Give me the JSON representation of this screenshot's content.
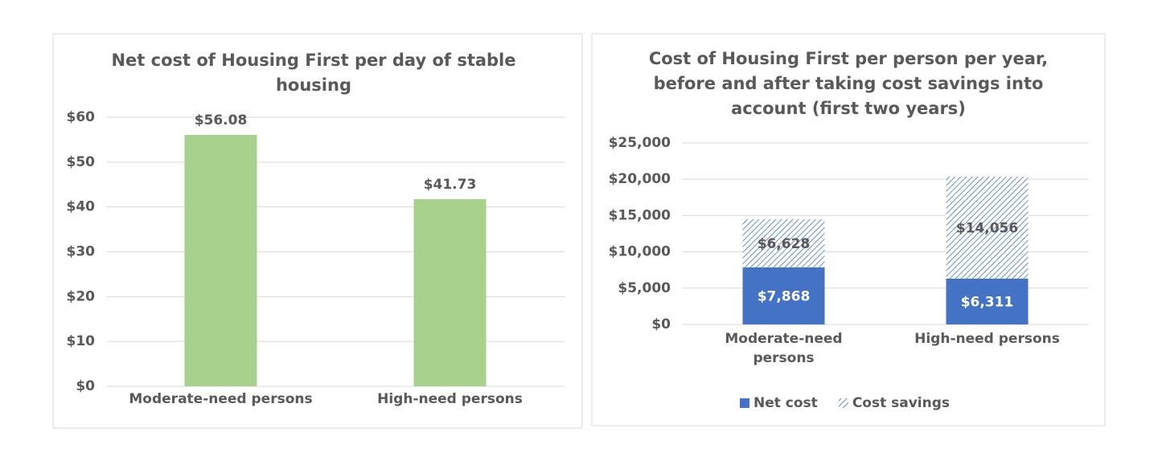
{
  "chart_data": [
    {
      "type": "bar",
      "title": "Net cost of Housing First per day of stable housing",
      "categories": [
        "Moderate-need persons",
        "High-need persons"
      ],
      "values": [
        56.08,
        41.73
      ],
      "value_labels": [
        "$56.08",
        "$41.73"
      ],
      "color": "#a9d18e",
      "ylim": [
        0,
        60
      ],
      "yticks": [
        {
          "value": 0,
          "label": "$0"
        },
        {
          "value": 10,
          "label": "$10"
        },
        {
          "value": 20,
          "label": "$20"
        },
        {
          "value": 30,
          "label": "$30"
        },
        {
          "value": 40,
          "label": "$40"
        },
        {
          "value": 50,
          "label": "$50"
        },
        {
          "value": 60,
          "label": "$60"
        }
      ],
      "grid": true
    },
    {
      "type": "stacked-bar",
      "title": "Cost of Housing First per person per year, before and after taking cost savings into account (first two years)",
      "categories": [
        "Moderate-need persons",
        "High-need persons"
      ],
      "series": [
        {
          "name": "Net cost",
          "color": "#4472c4",
          "fill": "solid",
          "values": [
            7868,
            6311
          ],
          "value_labels": [
            "$7,868",
            "$6,311"
          ]
        },
        {
          "name": "Cost savings",
          "color": "#4472c4",
          "fill": "hatch",
          "values": [
            6628,
            14056
          ],
          "value_labels": [
            "$6,628",
            "$14,056"
          ]
        }
      ],
      "ylim": [
        0,
        25000
      ],
      "yticks": [
        {
          "value": 0,
          "label": "$0"
        },
        {
          "value": 5000,
          "label": "$5,000"
        },
        {
          "value": 10000,
          "label": "$10,000"
        },
        {
          "value": 15000,
          "label": "$15,000"
        },
        {
          "value": 20000,
          "label": "$20,000"
        },
        {
          "value": 25000,
          "label": "$25,000"
        }
      ],
      "grid": true,
      "legend": "bottom"
    }
  ]
}
